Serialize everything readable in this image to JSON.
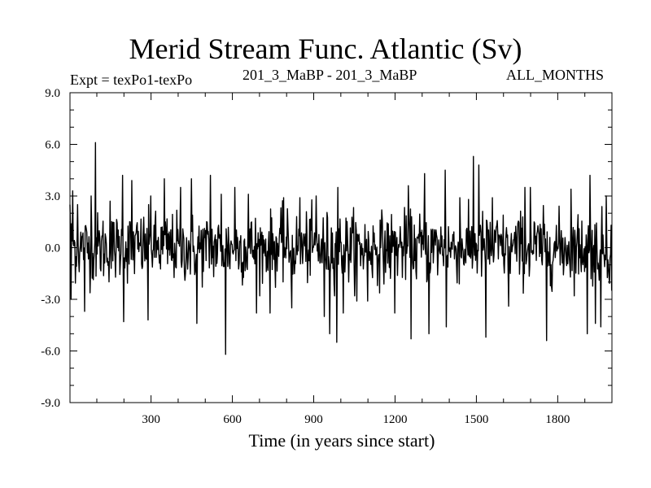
{
  "header": {
    "title": "Merid Stream Func. Atlantic (Sv)",
    "expt": "Expt = texPo1-texPo",
    "center_label": "201_3_MaBP - 201_3_MaBP",
    "right_label": "ALL_MONTHS"
  },
  "chart_data": {
    "type": "line",
    "title": "Merid Stream Func. Atlantic (Sv)",
    "xlabel": "Time (in years since start)",
    "ylabel": "",
    "xlim": [
      1,
      2000
    ],
    "ylim": [
      -9.0,
      9.0
    ],
    "xticks": [
      300,
      600,
      900,
      1200,
      1500,
      1800
    ],
    "xtick_labels": [
      "300",
      "600",
      "900",
      "1200",
      "1500",
      "1800"
    ],
    "yticks": [
      -9.0,
      -6.0,
      -3.0,
      0.0,
      3.0,
      6.0,
      9.0
    ],
    "ytick_labels": [
      "-9.0",
      "-6.0",
      "-3.0",
      "0.0",
      "3.0",
      "6.0",
      "9.0"
    ],
    "grid": false,
    "line_color": "#000000",
    "series": [
      {
        "noise_sd": 1.0,
        "sample_every_years": 2,
        "x_peaks": [
          [
            2,
            2.5
          ],
          [
            5,
            -3.0
          ],
          [
            12,
            3.3
          ],
          [
            30,
            2.5
          ],
          [
            55,
            -3.7
          ],
          [
            80,
            3.0
          ],
          [
            95,
            6.1
          ],
          [
            150,
            2.7
          ],
          [
            195,
            4.2
          ],
          [
            200,
            -4.3
          ],
          [
            230,
            3.9
          ],
          [
            290,
            -4.2
          ],
          [
            300,
            3.0
          ],
          [
            350,
            4.0
          ],
          [
            410,
            3.5
          ],
          [
            450,
            4.0
          ],
          [
            470,
            -4.4
          ],
          [
            520,
            4.2
          ],
          [
            560,
            3.1
          ],
          [
            575,
            -6.2
          ],
          [
            610,
            3.5
          ],
          [
            660,
            3.1
          ],
          [
            690,
            -3.8
          ],
          [
            740,
            -3.8
          ],
          [
            790,
            2.9
          ],
          [
            820,
            -3.5
          ],
          [
            850,
            2.9
          ],
          [
            910,
            3.0
          ],
          [
            940,
            -4.0
          ],
          [
            960,
            -5.0
          ],
          [
            985,
            -5.5
          ],
          [
            990,
            3.5
          ],
          [
            1010,
            -3.8
          ],
          [
            1060,
            -3.1
          ],
          [
            1100,
            -3.1
          ],
          [
            1200,
            -3.8
          ],
          [
            1250,
            3.6
          ],
          [
            1260,
            -5.3
          ],
          [
            1310,
            4.3
          ],
          [
            1325,
            -5.0
          ],
          [
            1385,
            4.5
          ],
          [
            1390,
            -4.6
          ],
          [
            1440,
            2.9
          ],
          [
            1490,
            5.3
          ],
          [
            1510,
            4.8
          ],
          [
            1535,
            -5.2
          ],
          [
            1560,
            2.9
          ],
          [
            1620,
            -3.4
          ],
          [
            1680,
            3.5
          ],
          [
            1700,
            3.5
          ],
          [
            1760,
            -5.4
          ],
          [
            1850,
            3.4
          ],
          [
            1910,
            -5.0
          ],
          [
            1920,
            4.2
          ],
          [
            1940,
            -4.4
          ],
          [
            1960,
            -4.6
          ],
          [
            1980,
            3.0
          ],
          [
            2000,
            -2.5
          ]
        ]
      }
    ]
  }
}
